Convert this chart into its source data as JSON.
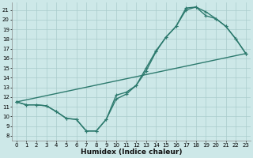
{
  "xlabel": "Humidex (Indice chaleur)",
  "bg_color": "#cde8e8",
  "grid_color": "#aacccc",
  "line_color": "#2d7a6e",
  "line_width": 1.0,
  "marker": "+",
  "marker_size": 3,
  "marker_ew": 0.8,
  "xlim": [
    -0.5,
    23.5
  ],
  "ylim": [
    7.5,
    21.8
  ],
  "xticks": [
    0,
    1,
    2,
    3,
    4,
    5,
    6,
    7,
    8,
    9,
    10,
    11,
    12,
    13,
    14,
    15,
    16,
    17,
    18,
    19,
    20,
    21,
    22,
    23
  ],
  "yticks": [
    8,
    9,
    10,
    11,
    12,
    13,
    14,
    15,
    16,
    17,
    18,
    19,
    20,
    21
  ],
  "tick_fontsize": 5.0,
  "xlabel_fontsize": 6.5,
  "line1_x": [
    0,
    1,
    2,
    3,
    4,
    5,
    6,
    7,
    8,
    9,
    10,
    11,
    12,
    13,
    14,
    15,
    16,
    17,
    18,
    19,
    20,
    21,
    22,
    23
  ],
  "line1_y": [
    11.5,
    11.2,
    11.2,
    11.1,
    10.5,
    9.8,
    9.7,
    8.5,
    8.5,
    9.7,
    12.2,
    12.5,
    13.2,
    14.7,
    16.7,
    18.2,
    19.3,
    21.2,
    21.3,
    20.4,
    20.1,
    19.3,
    18.0,
    16.5
  ],
  "line2_x": [
    0,
    1,
    2,
    3,
    4,
    5,
    6,
    7,
    8,
    9,
    10,
    11,
    12,
    13,
    14,
    15,
    16,
    17,
    18,
    19,
    20,
    21,
    22,
    23
  ],
  "line2_y": [
    11.5,
    11.2,
    11.2,
    11.1,
    10.5,
    9.8,
    9.7,
    8.5,
    8.5,
    9.7,
    11.8,
    12.3,
    13.2,
    15.0,
    16.8,
    18.2,
    19.3,
    21.0,
    21.3,
    20.8,
    20.1,
    19.3,
    18.0,
    16.5
  ],
  "line3_x": [
    0,
    23
  ],
  "line3_y": [
    11.5,
    16.5
  ]
}
